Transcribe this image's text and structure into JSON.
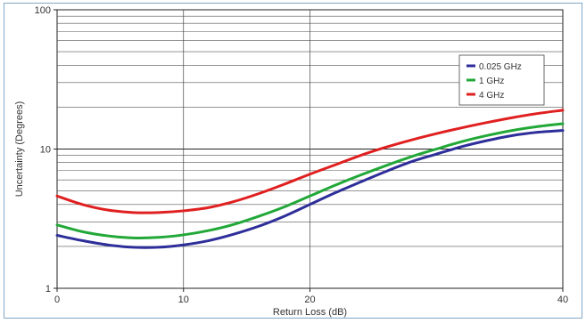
{
  "chart_data": {
    "type": "line",
    "title": "",
    "xlabel": "Return Loss (dB)",
    "ylabel": "Uncertainty (Degrees)",
    "xlim": [
      0,
      40
    ],
    "ylim": [
      1,
      100
    ],
    "yscale": "log",
    "grid": true,
    "legend_position": "top-right",
    "xticks": [
      0,
      10,
      20,
      40
    ],
    "xtick_labels": [
      "0",
      "10",
      "20",
      "40"
    ],
    "yticks": [
      1,
      10,
      100
    ],
    "ytick_labels": [
      "1",
      "10",
      "100"
    ],
    "series": [
      {
        "name": "0.025 GHz",
        "color": "#2e2e9a",
        "x": [
          0,
          2,
          4,
          6,
          8,
          10,
          12,
          14,
          16,
          18,
          20,
          22,
          24,
          26,
          28,
          30,
          32,
          34,
          36,
          38,
          40
        ],
        "y": [
          2.4,
          2.2,
          2.05,
          1.97,
          1.97,
          2.05,
          2.2,
          2.45,
          2.8,
          3.3,
          4.0,
          4.85,
          5.8,
          6.9,
          8.1,
          9.2,
          10.4,
          11.5,
          12.5,
          13.2,
          13.6
        ]
      },
      {
        "name": "1 GHz",
        "color": "#22a838",
        "x": [
          0,
          2,
          4,
          6,
          8,
          10,
          12,
          14,
          16,
          18,
          20,
          22,
          24,
          26,
          28,
          30,
          32,
          34,
          36,
          38,
          40
        ],
        "y": [
          2.85,
          2.55,
          2.38,
          2.3,
          2.32,
          2.42,
          2.6,
          2.88,
          3.3,
          3.85,
          4.6,
          5.5,
          6.5,
          7.6,
          8.8,
          10.0,
          11.3,
          12.5,
          13.6,
          14.5,
          15.2
        ]
      },
      {
        "name": "4 GHz",
        "color": "#e02020",
        "x": [
          0,
          2,
          4,
          6,
          8,
          10,
          12,
          14,
          16,
          18,
          20,
          22,
          24,
          26,
          28,
          30,
          32,
          34,
          36,
          38,
          40
        ],
        "y": [
          4.6,
          4.0,
          3.65,
          3.5,
          3.5,
          3.6,
          3.8,
          4.2,
          4.8,
          5.6,
          6.6,
          7.7,
          9.0,
          10.3,
          11.6,
          12.9,
          14.2,
          15.5,
          16.8,
          18.0,
          19.0
        ]
      }
    ]
  }
}
